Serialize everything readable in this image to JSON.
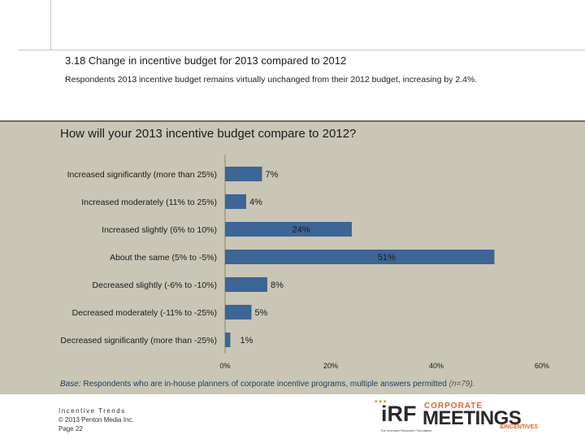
{
  "slide": {
    "title": "3.18 Change in incentive budget for 2013 compared to 2012",
    "subtitle": "Respondents 2013 incentive budget remains virtually unchanged from their 2012 budget, increasing by 2.4%."
  },
  "chart_data": {
    "type": "bar",
    "orientation": "horizontal",
    "title": "How will your 2013 incentive budget compare to 2012?",
    "categories": [
      "Increased significantly (more than 25%)",
      "Increased moderately (11% to 25%)",
      "Increased slightly (6% to 10%)",
      "About the same (5% to -5%)",
      "Decreased slightly (-6% to -10%)",
      "Decreased moderately (-11% to -25%)",
      "Decreased significantly (more than -25%)"
    ],
    "values": [
      7,
      4,
      24,
      51,
      8,
      5,
      1
    ],
    "data_labels": [
      "7%",
      "4%",
      "24%",
      "51%",
      "8%",
      "5%",
      "1%"
    ],
    "xlim": [
      0,
      60
    ],
    "xticks": [
      0,
      20,
      40,
      60
    ],
    "xtick_labels": [
      "0%",
      "20%",
      "40%",
      "60%"
    ],
    "bar_color": "#3d6595",
    "xlabel": "",
    "ylabel": ""
  },
  "base_note": {
    "prefix": "Base:",
    "text": "Respondents who are in-house planners of corporate incentive programs, multiple answers permitted",
    "n": "(n=79)."
  },
  "footer": {
    "title": "Incentive Trends",
    "copyright": "© 2013 Penton Media Inc.",
    "page": "Page 22"
  },
  "logos": {
    "irf": "iRF",
    "irf_tag": "The Incentive Research Foundation",
    "meetings_top": "CORPORATE",
    "meetings_main": "MEETINGS",
    "meetings_bottom": "&INCENTIVES"
  }
}
